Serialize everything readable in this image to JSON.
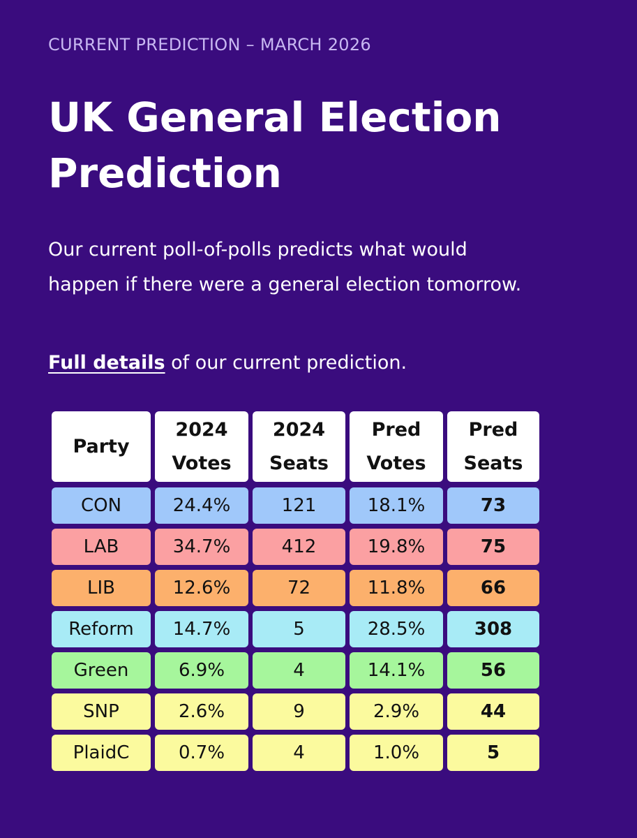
{
  "eyebrow": "CURRENT PREDICTION – MARCH 2026",
  "title": "UK General Election Prediction",
  "intro": "Our current poll-of-polls predicts what would happen if there were a general election tomorrow.",
  "details": {
    "link_label": "Full details",
    "suffix": " of our current prediction."
  },
  "colors": {
    "background": "#3a0c7e",
    "header_cell": "#ffffff"
  },
  "table": {
    "headers": [
      [
        "Party"
      ],
      [
        "2024",
        "Votes"
      ],
      [
        "2024",
        "Seats"
      ],
      [
        "Pred",
        "Votes"
      ],
      [
        "Pred",
        "Seats"
      ]
    ],
    "rows": [
      {
        "party": "CON",
        "votes_2024": "24.4%",
        "seats_2024": "121",
        "pred_votes": "18.1%",
        "pred_seats": "73",
        "color": "#a0c8fa"
      },
      {
        "party": "LAB",
        "votes_2024": "34.7%",
        "seats_2024": "412",
        "pred_votes": "19.8%",
        "pred_seats": "75",
        "color": "#fba0a2"
      },
      {
        "party": "LIB",
        "votes_2024": "12.6%",
        "seats_2024": "72",
        "pred_votes": "11.8%",
        "pred_seats": "66",
        "color": "#fcb06c"
      },
      {
        "party": "Reform",
        "votes_2024": "14.7%",
        "seats_2024": "5",
        "pred_votes": "28.5%",
        "pred_seats": "308",
        "color": "#a8ebf6"
      },
      {
        "party": "Green",
        "votes_2024": "6.9%",
        "seats_2024": "4",
        "pred_votes": "14.1%",
        "pred_seats": "56",
        "color": "#a6f69c"
      },
      {
        "party": "SNP",
        "votes_2024": "2.6%",
        "seats_2024": "9",
        "pred_votes": "2.9%",
        "pred_seats": "44",
        "color": "#fbfa9e"
      },
      {
        "party": "PlaidC",
        "votes_2024": "0.7%",
        "seats_2024": "4",
        "pred_votes": "1.0%",
        "pred_seats": "5",
        "color": "#fbfa9e"
      }
    ]
  }
}
